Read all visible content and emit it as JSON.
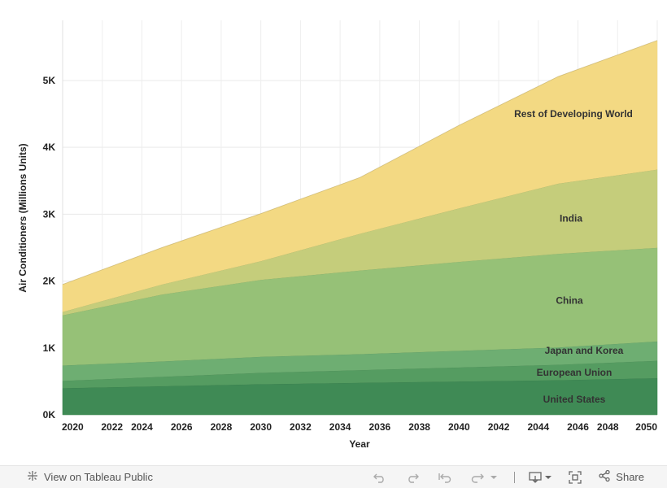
{
  "chart_data": {
    "type": "area",
    "stacked": true,
    "xlabel": "Year",
    "ylabel": "Air Conditioners (Millions Units)",
    "x": [
      2020,
      2025,
      2030,
      2035,
      2040,
      2045,
      2050
    ],
    "xticks": [
      "2020",
      "2022",
      "2024",
      "2026",
      "2028",
      "2030",
      "2032",
      "2034",
      "2036",
      "2038",
      "2040",
      "2042",
      "2044",
      "2046",
      "2048",
      "2050"
    ],
    "yticks": [
      "0K",
      "1K",
      "2K",
      "3K",
      "4K",
      "5K"
    ],
    "ylim": [
      0,
      5900
    ],
    "xlim": [
      2020,
      2050
    ],
    "grid": true,
    "series": [
      {
        "name": "United States",
        "values": [
          400,
          430,
          460,
          480,
          500,
          520,
          550
        ],
        "color": "#3f8a55"
      },
      {
        "name": "European Union",
        "values": [
          110,
          140,
          170,
          190,
          210,
          230,
          260
        ],
        "color": "#559c61"
      },
      {
        "name": "Japan and Korea",
        "values": [
          230,
          230,
          240,
          240,
          250,
          260,
          290
        ],
        "color": "#6eae72"
      },
      {
        "name": "China",
        "values": [
          750,
          1000,
          1150,
          1250,
          1330,
          1400,
          1400
        ],
        "color": "#96c177"
      },
      {
        "name": "India",
        "values": [
          50,
          150,
          280,
          550,
          800,
          1050,
          1170
        ],
        "color": "#c5cd7b"
      },
      {
        "name": "Rest of Developing World",
        "values": [
          410,
          550,
          710,
          840,
          1240,
          1600,
          1930
        ],
        "color": "#f3d983"
      }
    ],
    "labels_at_end": true
  },
  "toolbar": {
    "view_label": "View on Tableau Public",
    "share_label": "Share"
  }
}
